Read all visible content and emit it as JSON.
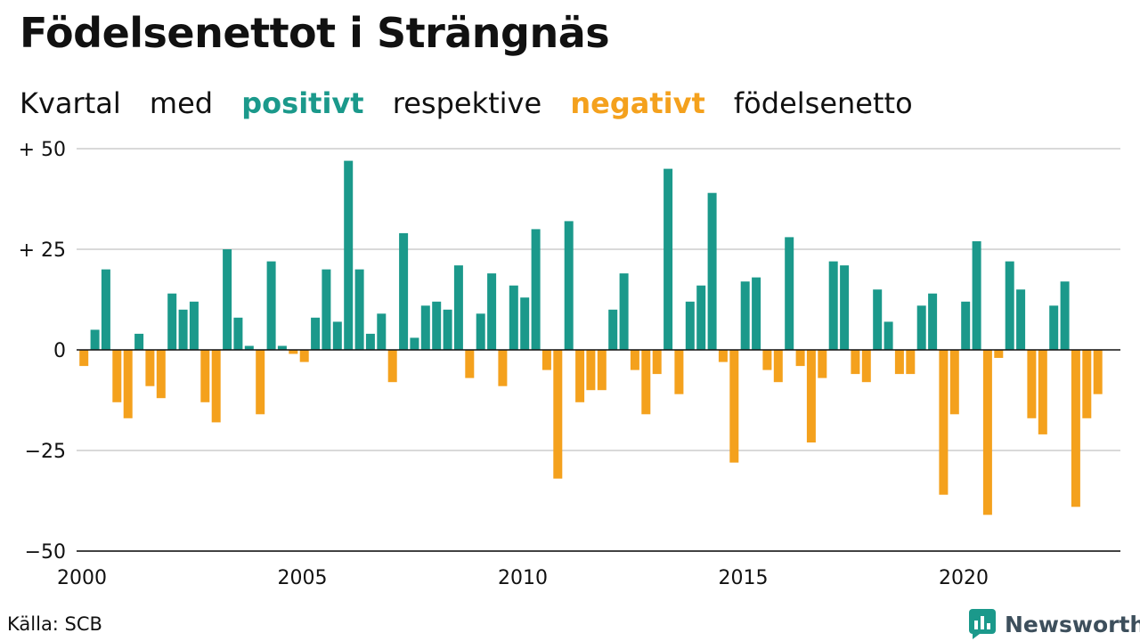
{
  "title": "Födelsenettot i Strängnäs",
  "subtitle": {
    "prefix": "Kvartal",
    "with": "med",
    "positive": "positivt",
    "respectively": "respektive",
    "negative": "negativt",
    "suffix": "födelsenetto"
  },
  "source": "Källa: SCB",
  "brand": {
    "name": "Newsworthy",
    "icon": "bar-chart-logo-icon"
  },
  "colors": {
    "positive": "#1b998b",
    "negative": "#f4a11d",
    "grid": "#d9d9d9",
    "axis": "#111111",
    "text": "#111111"
  },
  "chart_data": {
    "type": "bar",
    "x_start": "2000 Q1",
    "frequency": "quarter",
    "x_ticks": [
      {
        "year": 2000,
        "label": "2000"
      },
      {
        "year": 2005,
        "label": "2005"
      },
      {
        "year": 2010,
        "label": "2010"
      },
      {
        "year": 2015,
        "label": "2015"
      },
      {
        "year": 2020,
        "label": "2020"
      }
    ],
    "y_ticks": [
      {
        "value": 50,
        "label": "+ 50"
      },
      {
        "value": 25,
        "label": "+ 25"
      },
      {
        "value": 0,
        "label": "0"
      },
      {
        "value": -25,
        "label": "−25"
      },
      {
        "value": -50,
        "label": "−50"
      }
    ],
    "ylim": [
      -50,
      50
    ],
    "grid": true,
    "legend": "none",
    "values": [
      -4,
      5,
      20,
      -13,
      -17,
      4,
      -9,
      -12,
      14,
      10,
      12,
      -13,
      -18,
      25,
      8,
      1,
      -16,
      22,
      1,
      -1,
      -3,
      8,
      20,
      7,
      47,
      20,
      4,
      9,
      -8,
      29,
      3,
      11,
      12,
      10,
      21,
      -7,
      9,
      19,
      -9,
      16,
      13,
      30,
      -5,
      -32,
      32,
      -13,
      -10,
      -10,
      10,
      19,
      -5,
      -16,
      -6,
      45,
      -11,
      12,
      16,
      39,
      -3,
      -28,
      17,
      18,
      -5,
      -8,
      28,
      -4,
      -23,
      -7,
      22,
      21,
      -6,
      -8,
      15,
      7,
      -6,
      -6,
      11,
      14,
      -36,
      -16,
      12,
      27,
      -41,
      -2,
      22,
      15,
      -17,
      -21,
      11,
      17,
      -39,
      -17,
      -11
    ]
  }
}
